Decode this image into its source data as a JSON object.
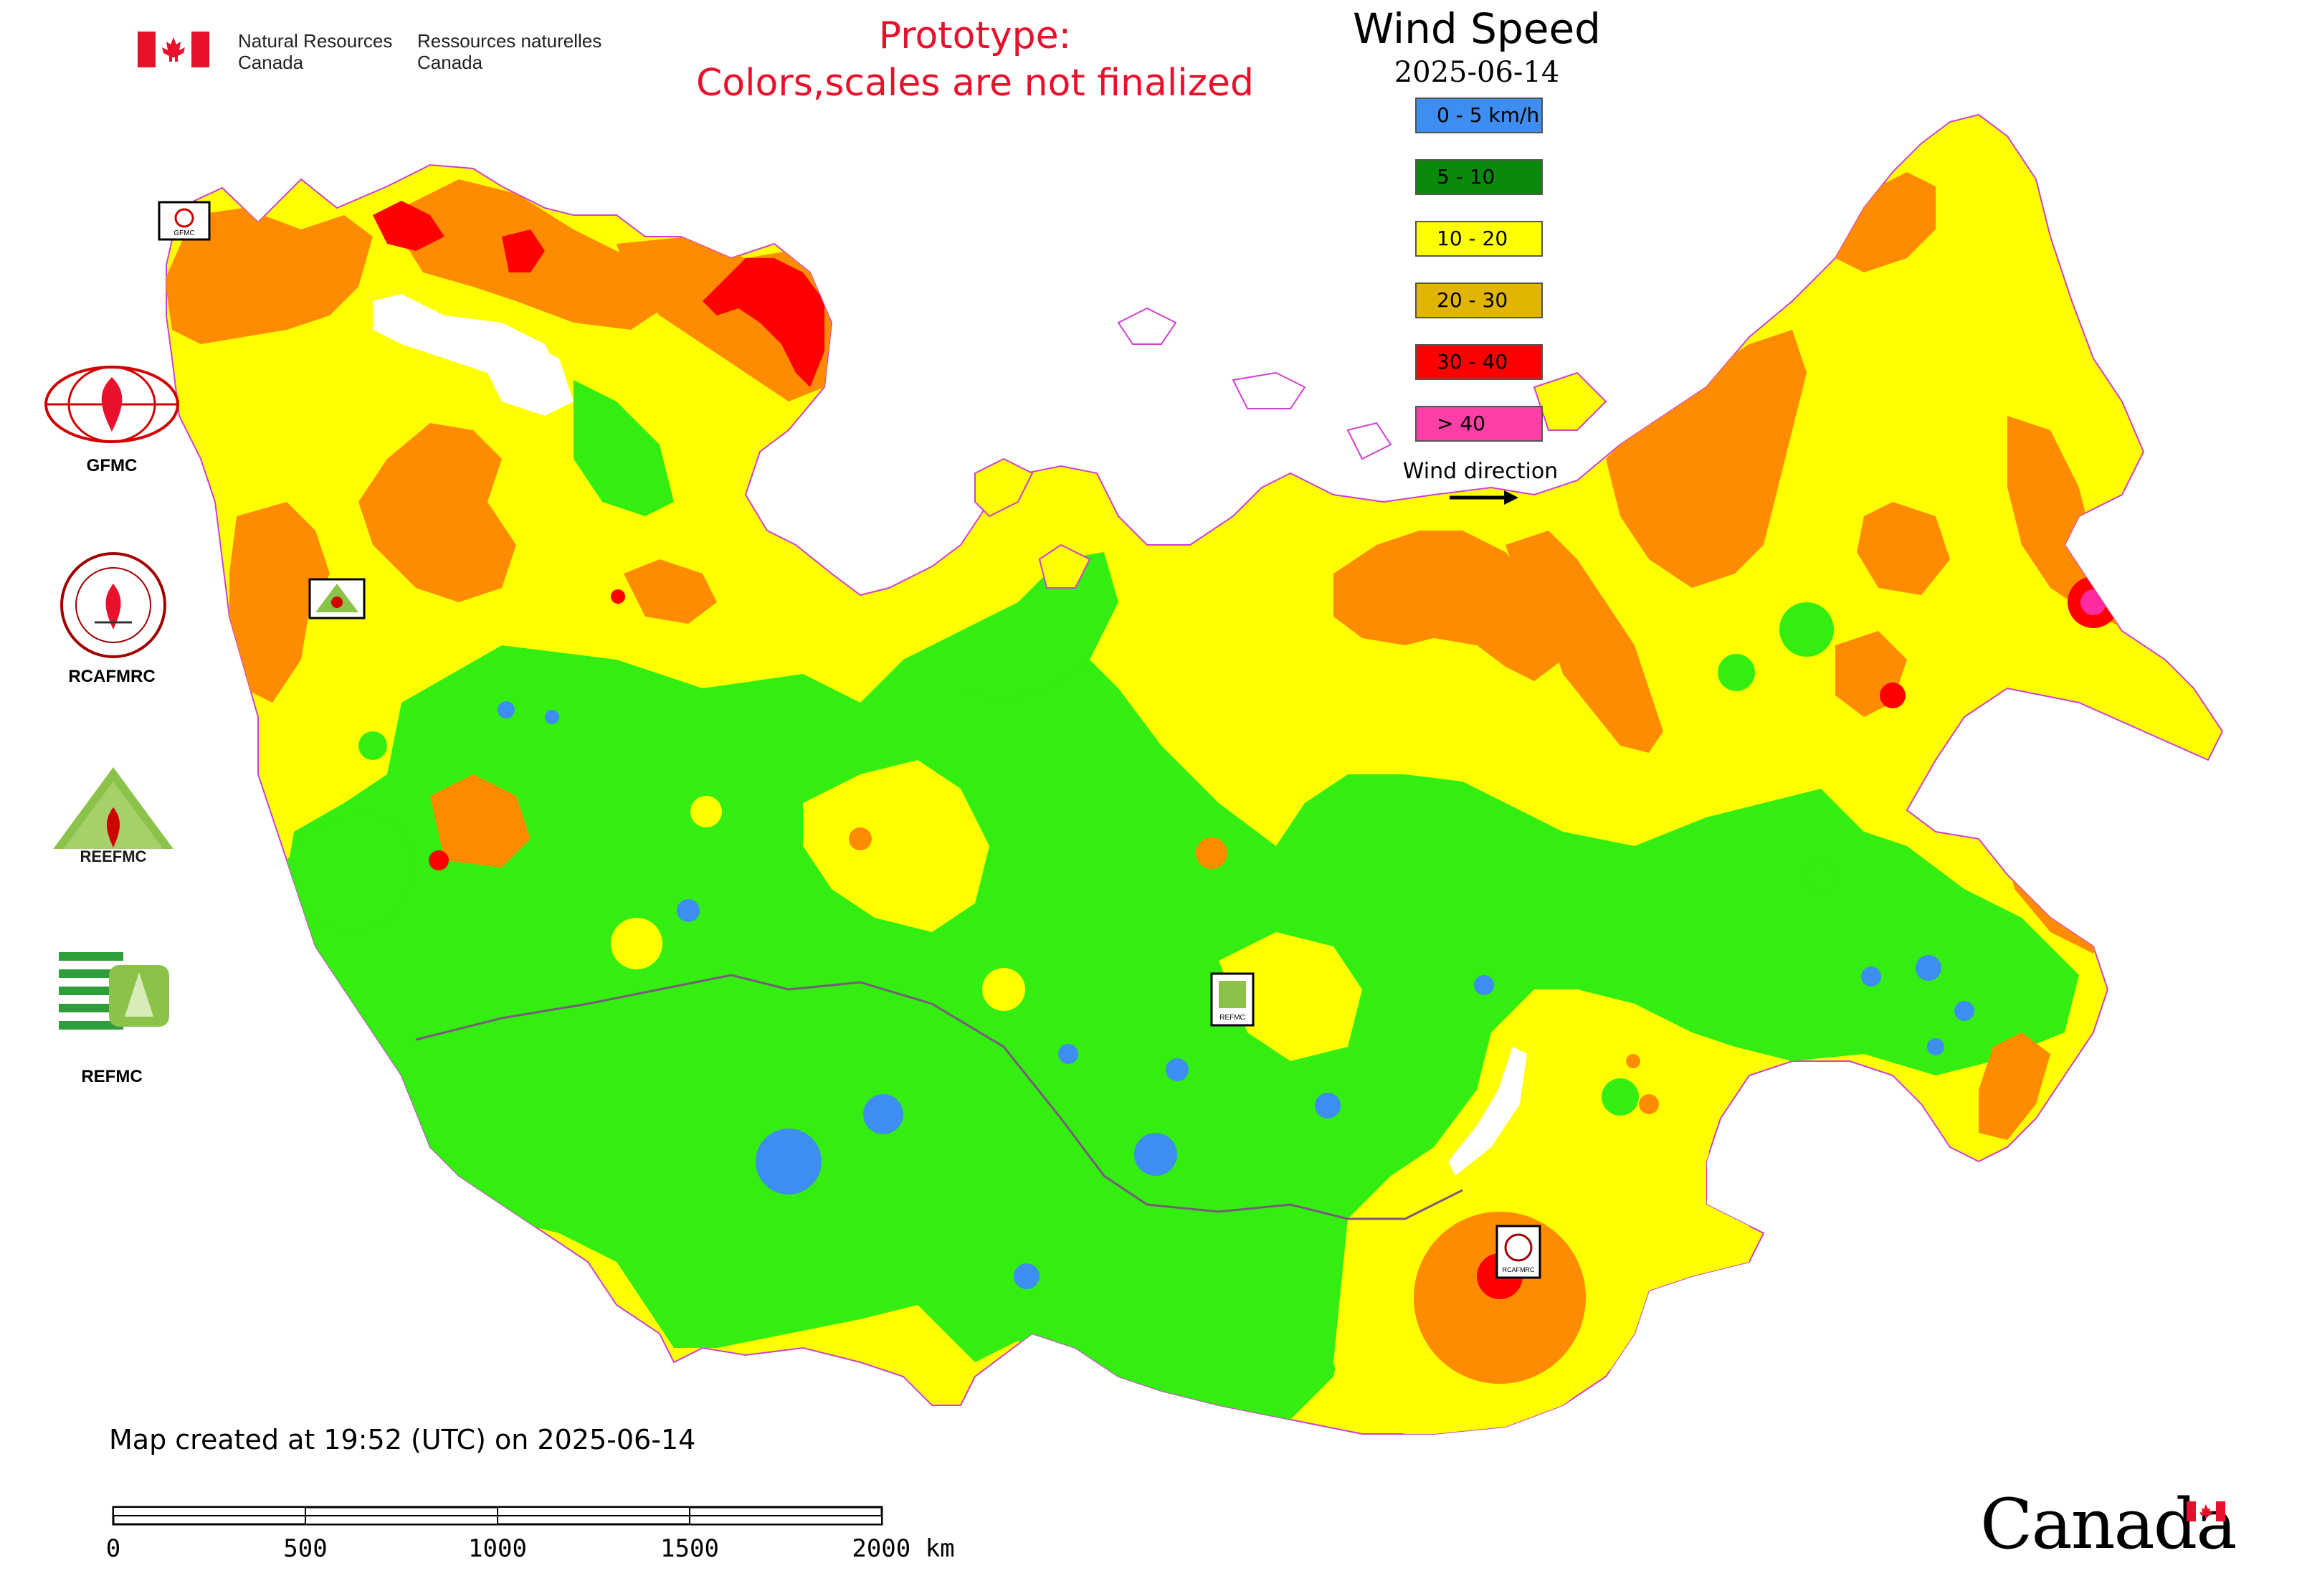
{
  "header": {
    "nrcan_en_line1": "Natural Resources",
    "nrcan_en_line2": "Canada",
    "nrcan_fr_line1": "Ressources naturelles",
    "nrcan_fr_line2": "Canada",
    "prototype_line1": "Prototype:",
    "prototype_line2": "Colors,scales are not finalized"
  },
  "map_title": "Wind Speed",
  "map_date": "2025-06-14",
  "legend": {
    "items": [
      {
        "label": "0 - 5 km/h",
        "color": "#3d8ef0"
      },
      {
        "label": "5 - 10",
        "color": "#0a8a0a"
      },
      {
        "label": "10 - 20",
        "color": "#ffff00"
      },
      {
        "label": "20 - 30",
        "color": "#e0b400"
      },
      {
        "label": "30 - 40",
        "color": "#ff0000"
      },
      {
        "label": "> 40",
        "color": "#ff3ea8"
      }
    ],
    "wind_direction_label": "Wind direction"
  },
  "map_colors": {
    "calm": "#3d8ef0",
    "light": "#33ee10",
    "moderate": "#ffff00",
    "fresh": "#ff8c00",
    "strong": "#ff0000",
    "extreme": "#ff2ba0",
    "water": "#ffffff",
    "border": "#d040d0"
  },
  "orgs": [
    {
      "label": "GFMC",
      "icon": "fire-globe-icon"
    },
    {
      "label": "RCAFMRC",
      "icon": "fire-seal-icon"
    },
    {
      "label": "REEFMC",
      "icon": "fire-triangle-icon"
    },
    {
      "label": "REFMC",
      "icon": "stripes-logo-icon"
    }
  ],
  "map_markers": [
    {
      "label": "GFMC"
    },
    {
      "label": "REEFMC"
    },
    {
      "label": "REFMC"
    },
    {
      "label": "RCAFMRC"
    }
  ],
  "footer": {
    "created": "Map created at 19:52 (UTC) on 2025-06-14",
    "scale_ticks": [
      "0",
      "500",
      "1000",
      "1500",
      "2000 km"
    ],
    "wordmark": "Canada"
  }
}
